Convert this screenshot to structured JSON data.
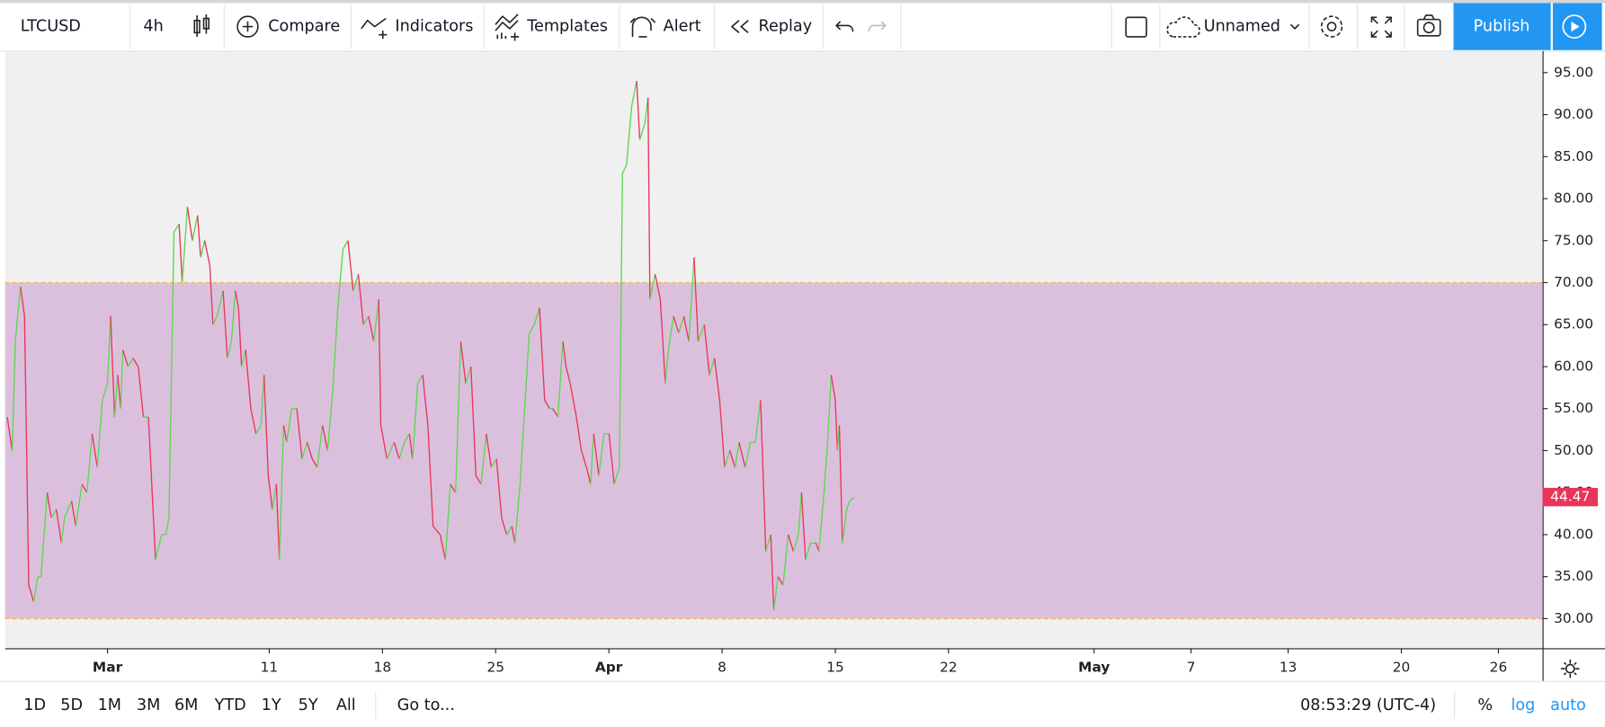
{
  "toolbar": {
    "symbol": "LTCUSD",
    "interval": "4h",
    "buttons": [
      "Compare",
      "Indicators",
      "Templates",
      "Alert",
      "Replay"
    ],
    "layout_name": "Unnamed",
    "publish": "Publish"
  },
  "chart_data": {
    "type": "line",
    "up_color": "#5fd64f",
    "down_color": "#e8365a",
    "band": {
      "from": 30,
      "to": 70,
      "fill": "#dbc0dd",
      "line_color": "#f2b84b"
    },
    "xlim": [
      -6.33,
      88.73
    ],
    "ylim": [
      26.47,
      97.56
    ],
    "xticks": [
      {
        "value": 0,
        "label": "Mar"
      },
      {
        "value": 10,
        "label": "11"
      },
      {
        "value": 17,
        "label": "18"
      },
      {
        "value": 24,
        "label": "25"
      },
      {
        "value": 31,
        "label": "Apr"
      },
      {
        "value": 38,
        "label": "8"
      },
      {
        "value": 45,
        "label": "15"
      },
      {
        "value": 52,
        "label": "22"
      },
      {
        "value": 61,
        "label": "May"
      },
      {
        "value": 67,
        "label": "7"
      },
      {
        "value": 73,
        "label": "13"
      },
      {
        "value": 80,
        "label": "20"
      },
      {
        "value": 86,
        "label": "26"
      }
    ],
    "yticks": [
      {
        "value": 30,
        "label": "30.00"
      },
      {
        "value": 35,
        "label": "35.00"
      },
      {
        "value": 40,
        "label": "40.00"
      },
      {
        "value": 45,
        "label": "45.00"
      },
      {
        "value": 50,
        "label": "50.00"
      },
      {
        "value": 55,
        "label": "55.00"
      },
      {
        "value": 60,
        "label": "60.00"
      },
      {
        "value": 65,
        "label": "65.00"
      },
      {
        "value": 70,
        "label": "70.00"
      },
      {
        "value": 75,
        "label": "75.00"
      },
      {
        "value": 80,
        "label": "80.00"
      },
      {
        "value": 85,
        "label": "85.00"
      },
      {
        "value": 90,
        "label": "90.00"
      },
      {
        "value": 95,
        "label": "95.00"
      }
    ],
    "x": [
      -6.2,
      -5.89,
      -5.7,
      -5.38,
      -5.13,
      -4.87,
      -4.56,
      -4.3,
      -4.11,
      -3.73,
      -3.48,
      -3.16,
      -2.85,
      -2.66,
      -2.22,
      -1.96,
      -1.58,
      -1.27,
      -0.95,
      -0.63,
      -0.32,
      0,
      0.19,
      0.44,
      0.63,
      0.82,
      0.95,
      1.27,
      1.58,
      1.9,
      2.22,
      2.53,
      2.97,
      3.35,
      3.61,
      3.8,
      4.11,
      4.43,
      4.62,
      4.94,
      5.25,
      5.57,
      5.76,
      6.01,
      6.33,
      6.52,
      6.77,
      7.15,
      7.41,
      7.66,
      7.91,
      8.1,
      8.29,
      8.54,
      8.86,
      9.18,
      9.49,
      9.68,
      9.94,
      10.19,
      10.44,
      10.63,
      10.89,
      11.08,
      11.39,
      11.71,
      12.03,
      12.34,
      12.66,
      12.97,
      13.29,
      13.61,
      13.92,
      14.24,
      14.56,
      14.87,
      15.19,
      15.51,
      15.82,
      16.14,
      16.46,
      16.77,
      16.9,
      17.28,
      17.72,
      18.04,
      18.35,
      18.67,
      18.86,
      19.18,
      19.49,
      19.81,
      20.13,
      20.57,
      20.89,
      21.2,
      21.52,
      21.84,
      22.15,
      22.47,
      22.78,
      23.1,
      23.42,
      23.73,
      24.05,
      24.37,
      24.68,
      25,
      25.19,
      25.51,
      25.76,
      26.08,
      26.39,
      26.71,
      27.03,
      27.34,
      27.53,
      27.85,
      28.16,
      28.35,
      28.61,
      28.99,
      29.3,
      29.62,
      29.87,
      30.06,
      30.38,
      30.7,
      31.01,
      31.33,
      31.65,
      31.84,
      32.09,
      32.41,
      32.72,
      32.91,
      33.23,
      33.42,
      33.54,
      33.86,
      34.18,
      34.49,
      34.68,
      35,
      35.32,
      35.63,
      35.95,
      36.27,
      36.52,
      36.9,
      37.22,
      37.53,
      37.85,
      38.16,
      38.48,
      38.8,
      39.05,
      39.43,
      39.75,
      40.06,
      40.38,
      40.7,
      41.01,
      41.2,
      41.46,
      41.77,
      42.09,
      42.41,
      42.72,
      42.91,
      43.16,
      43.48,
      43.8,
      43.99,
      44.3,
      44.49,
      44.75,
      45,
      45.13,
      45.25,
      45.44,
      45.7,
      45.89,
      46.2
    ],
    "values": [
      54,
      50,
      63,
      69.5,
      66,
      34,
      32,
      35,
      35,
      45,
      42,
      43,
      39,
      42,
      44,
      41,
      46,
      45,
      52,
      48,
      56,
      58,
      66,
      54,
      59,
      55,
      62,
      60,
      61,
      60,
      54,
      54,
      37,
      40,
      40,
      42,
      76,
      77,
      70,
      79,
      75,
      78,
      73,
      75,
      72,
      65,
      66,
      69,
      61,
      63,
      69,
      67,
      60,
      62,
      55,
      52,
      53,
      59,
      47,
      43,
      46,
      37,
      53,
      51,
      55,
      55,
      49,
      51,
      49,
      48,
      53,
      50,
      57,
      67,
      74,
      75,
      69,
      71,
      65,
      66,
      63,
      68,
      53,
      49,
      51,
      49,
      51,
      52,
      49,
      58,
      59,
      53,
      41,
      40,
      37,
      46,
      45,
      63,
      58,
      60,
      47,
      46,
      52,
      48,
      49,
      42,
      40,
      41,
      39,
      46,
      54,
      64,
      65,
      67,
      56,
      55,
      55,
      54,
      63,
      60,
      58,
      54,
      50,
      48,
      46,
      52,
      47,
      52,
      52,
      46,
      48,
      83,
      84,
      91,
      94,
      87,
      89,
      92,
      68,
      71,
      68,
      58,
      62,
      66,
      64,
      66,
      63,
      73,
      63,
      65,
      59,
      61,
      56,
      48,
      50,
      48,
      51,
      48,
      51,
      51,
      56,
      38,
      40,
      31,
      35,
      34,
      40,
      38,
      40,
      45,
      37,
      39,
      39,
      38,
      45,
      50,
      59,
      56,
      50,
      53,
      39,
      43,
      44,
      44.47
    ]
  },
  "bottom_bar": {
    "ranges": [
      "1D",
      "5D",
      "1M",
      "3M",
      "6M",
      "YTD",
      "1Y",
      "5Y",
      "All"
    ],
    "goto": "Go to...",
    "time": "08:53:29 (UTC-4)",
    "scale_options": [
      "%",
      "log",
      "auto"
    ]
  }
}
